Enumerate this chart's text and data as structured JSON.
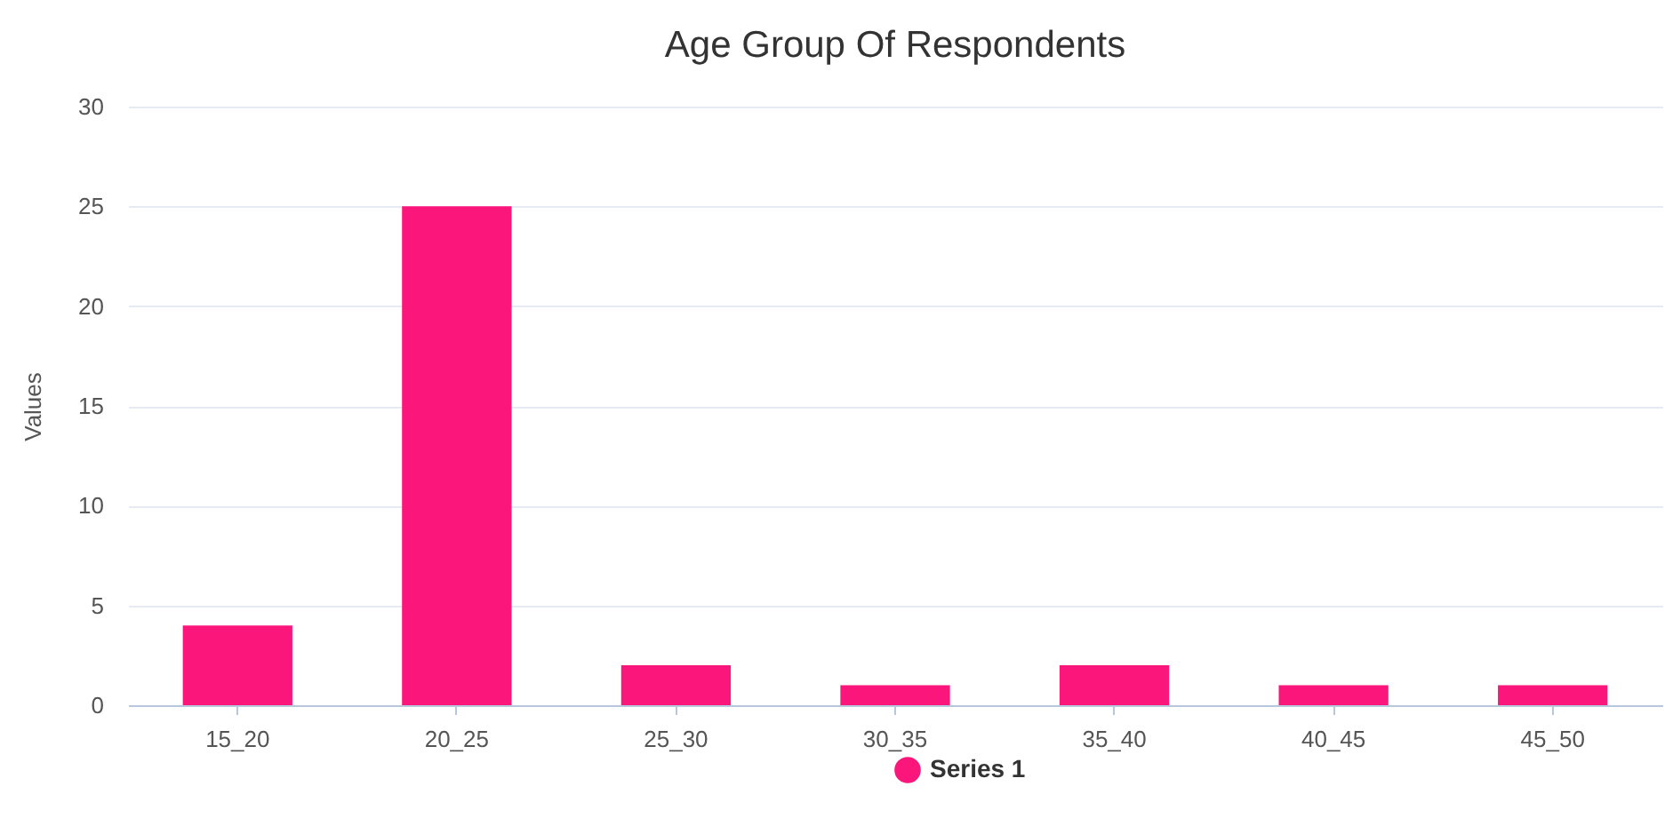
{
  "chart_data": {
    "type": "bar",
    "title": "Age Group Of Respondents",
    "ylabel": "Values",
    "categories": [
      "15_20",
      "20_25",
      "25_30",
      "30_35",
      "35_40",
      "40_45",
      "45_50"
    ],
    "series": [
      {
        "name": "Series 1",
        "color": "#fa167a",
        "values": [
          4,
          25,
          2,
          1,
          2,
          1,
          1
        ]
      }
    ],
    "ylim": [
      0,
      30
    ],
    "yticks": [
      0,
      5,
      10,
      15,
      20,
      25,
      30
    ],
    "grid": "y",
    "legend": "bottom"
  }
}
